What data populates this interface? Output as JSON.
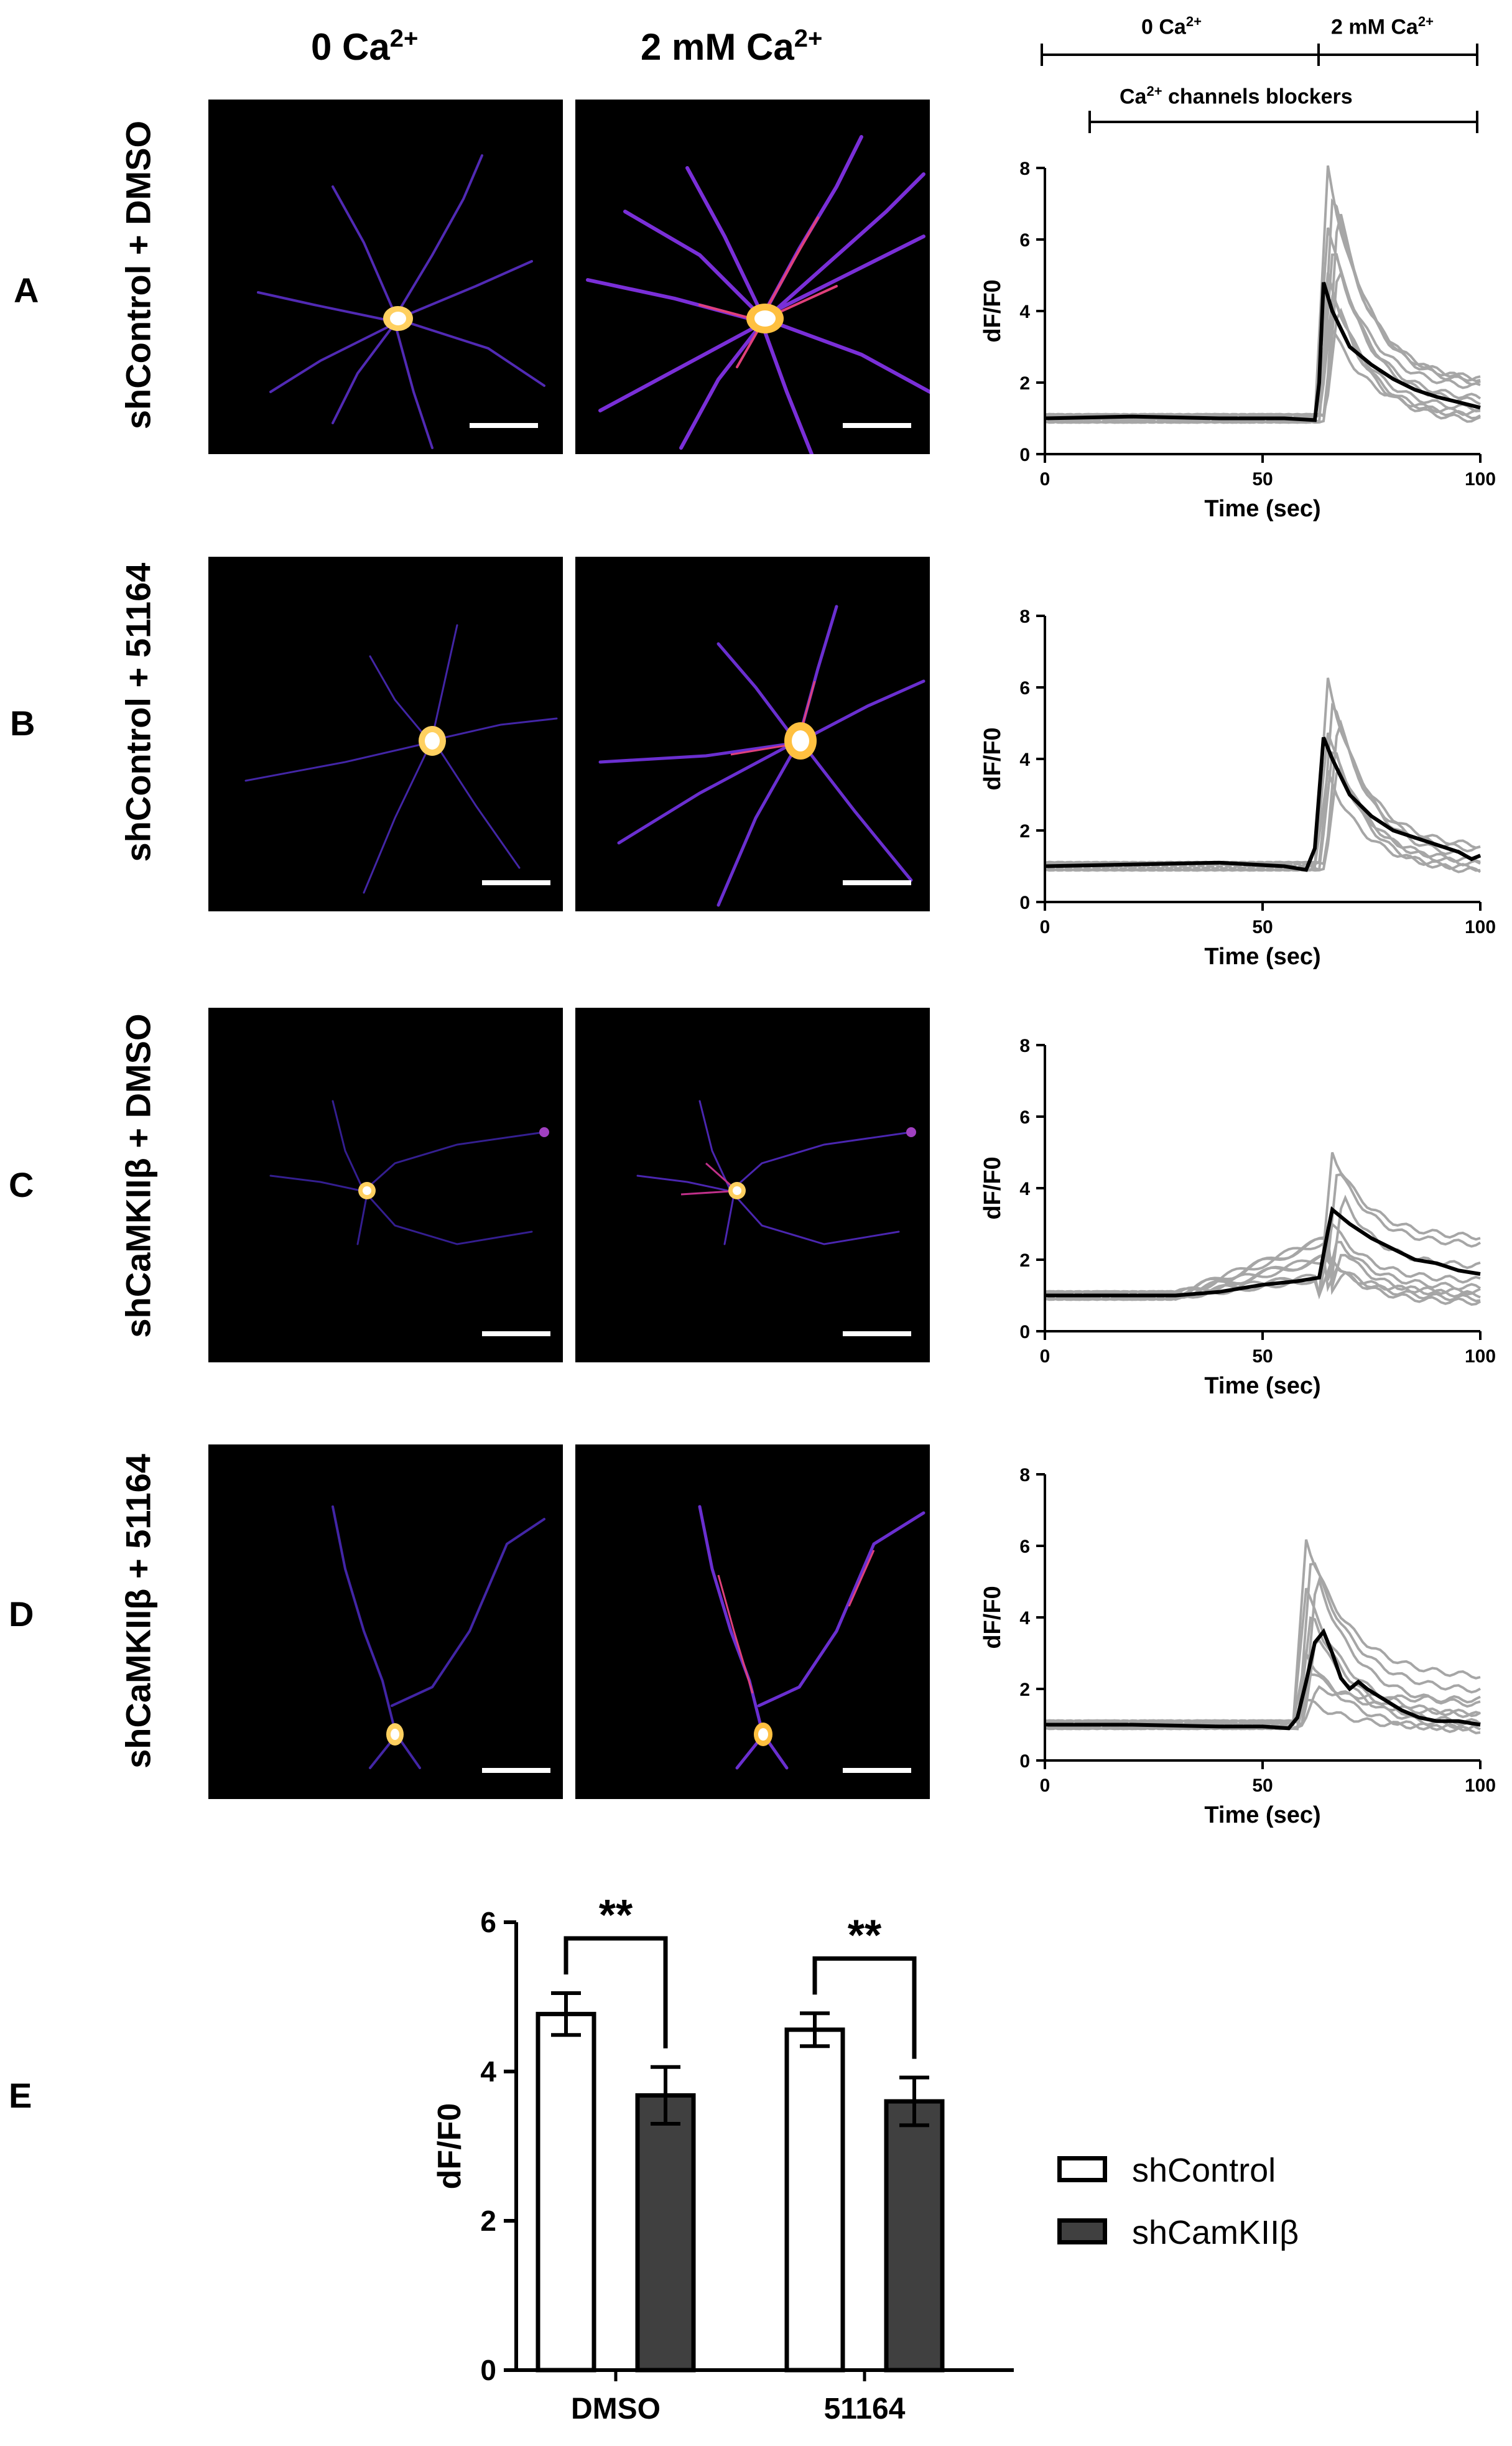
{
  "column_titles": {
    "zero_ca_base": "0 Ca",
    "zero_ca_sup": "2+",
    "two_mm_base": "2 mM Ca",
    "two_mm_sup": "2+"
  },
  "timeline": {
    "left_label_base": "0 Ca",
    "left_label_sup": "2+",
    "right_label_base": "2 mM Ca",
    "right_label_sup": "2+",
    "blockers_label_base": "Ca",
    "blockers_label_sup": "2+",
    "blockers_label_rest": " channels blockers"
  },
  "rows": [
    {
      "panel": "A",
      "condition": "shControl + DMSO"
    },
    {
      "panel": "B",
      "condition": "shControl + 51164"
    },
    {
      "panel": "C",
      "condition": "shCaMKIIβ + DMSO"
    },
    {
      "panel": "D",
      "condition": "shCaMKIIβ + 51164"
    }
  ],
  "panel_e_label": "E",
  "legend": {
    "control": "shControl",
    "knockdown": "shCamKIIβ"
  },
  "colors": {
    "trace_individual": "#a6a6a6",
    "trace_mean": "#000000",
    "bar_control": "#ffffff",
    "bar_knockdown": "#404040"
  },
  "chart_data": [
    {
      "panel": "A",
      "type": "line",
      "xlabel": "Time (sec)",
      "ylabel": "dF/F0",
      "xlim": [
        0,
        100
      ],
      "ylim": [
        0,
        8
      ],
      "xticks": [
        "0",
        "50",
        "100"
      ],
      "yticks": [
        "0",
        "2",
        "4",
        "6",
        "8"
      ],
      "mean": {
        "x": [
          0,
          20,
          40,
          55,
          62,
          63,
          64,
          66,
          70,
          75,
          80,
          85,
          90,
          95,
          100
        ],
        "y": [
          1.0,
          1.05,
          1.0,
          1.0,
          0.95,
          2.0,
          4.8,
          4.0,
          3.0,
          2.5,
          2.1,
          1.8,
          1.6,
          1.45,
          1.3
        ]
      },
      "traces_peak": [
        8.0,
        7.5,
        7.0,
        6.4,
        5.9,
        5.4,
        5.0,
        4.6,
        4.2,
        3.8
      ],
      "traces_end": [
        2.0,
        1.9,
        2.0,
        1.8,
        1.5,
        1.4,
        1.2,
        1.0,
        0.9,
        1.1
      ],
      "traces_rise_time": 63
    },
    {
      "panel": "B",
      "type": "line",
      "xlabel": "Time (sec)",
      "ylabel": "dF/F0",
      "xlim": [
        0,
        100
      ],
      "ylim": [
        0,
        8
      ],
      "xticks": [
        "0",
        "50",
        "100"
      ],
      "yticks": [
        "0",
        "2",
        "4",
        "6",
        "8"
      ],
      "mean": {
        "x": [
          0,
          20,
          40,
          55,
          60,
          62,
          64,
          66,
          70,
          75,
          80,
          85,
          90,
          95,
          98,
          100
        ],
        "y": [
          1.0,
          1.05,
          1.1,
          1.0,
          0.9,
          1.5,
          4.6,
          4.0,
          3.0,
          2.4,
          2.0,
          1.8,
          1.6,
          1.4,
          1.2,
          1.3
        ]
      },
      "traces_peak": [
        6.2,
        5.8,
        5.2,
        4.8,
        4.4,
        4.0,
        3.6
      ],
      "traces_end": [
        1.5,
        1.2,
        1.4,
        1.0,
        0.8,
        1.1,
        0.9
      ],
      "traces_rise_time": 63
    },
    {
      "panel": "C",
      "type": "line",
      "xlabel": "Time (sec)",
      "ylabel": "dF/F0",
      "xlim": [
        0,
        100
      ],
      "ylim": [
        0,
        8
      ],
      "xticks": [
        "0",
        "50",
        "100"
      ],
      "yticks": [
        "0",
        "2",
        "4",
        "6",
        "8"
      ],
      "mean": {
        "x": [
          0,
          20,
          30,
          40,
          50,
          58,
          63,
          65,
          66,
          70,
          75,
          80,
          85,
          90,
          95,
          100
        ],
        "y": [
          1.0,
          1.0,
          1.0,
          1.1,
          1.3,
          1.4,
          1.5,
          2.8,
          3.4,
          3.0,
          2.6,
          2.3,
          2.0,
          1.9,
          1.7,
          1.6
        ]
      },
      "traces_peak": [
        5.0,
        4.6,
        3.8,
        3.0,
        2.6,
        2.3,
        2.0,
        1.8,
        1.6
      ],
      "traces_end": [
        2.6,
        2.4,
        1.8,
        1.4,
        1.2,
        1.0,
        0.9,
        0.8,
        1.1
      ],
      "traces_rise_time": 64
    },
    {
      "panel": "D",
      "type": "line",
      "xlabel": "Time (sec)",
      "ylabel": "dF/F0",
      "xlim": [
        0,
        100
      ],
      "ylim": [
        0,
        8
      ],
      "xticks": [
        "0",
        "50",
        "100"
      ],
      "yticks": [
        "0",
        "2",
        "4",
        "6",
        "8"
      ],
      "mean": {
        "x": [
          0,
          20,
          40,
          50,
          56,
          58,
          60,
          62,
          64,
          66,
          68,
          70,
          72,
          74,
          78,
          82,
          86,
          90,
          95,
          100
        ],
        "y": [
          1.0,
          1.0,
          0.95,
          0.95,
          0.9,
          1.2,
          2.2,
          3.3,
          3.6,
          3.0,
          2.3,
          2.0,
          2.2,
          2.0,
          1.7,
          1.4,
          1.2,
          1.1,
          1.1,
          1.0
        ]
      },
      "traces_peak": [
        6.2,
        5.8,
        5.2,
        4.8,
        4.2,
        3.6,
        3.0,
        2.5,
        2.0,
        1.7
      ],
      "traces_end": [
        2.3,
        1.9,
        1.5,
        1.2,
        1.0,
        0.9,
        0.8,
        1.3,
        1.7,
        0.9
      ],
      "traces_rise_time": 58
    },
    {
      "panel": "E",
      "type": "bar",
      "ylabel": "dF/F0",
      "ylim": [
        0,
        6
      ],
      "yticks": [
        "0",
        "2",
        "4",
        "6"
      ],
      "categories": [
        "DMSO",
        "51164"
      ],
      "series": [
        {
          "name": "shControl",
          "values": [
            4.77,
            4.56
          ],
          "errors": [
            0.28,
            0.22
          ]
        },
        {
          "name": "shCamKIIβ",
          "values": [
            3.68,
            3.6
          ],
          "errors": [
            0.38,
            0.32
          ]
        }
      ],
      "significance": [
        "**",
        "**"
      ]
    }
  ]
}
